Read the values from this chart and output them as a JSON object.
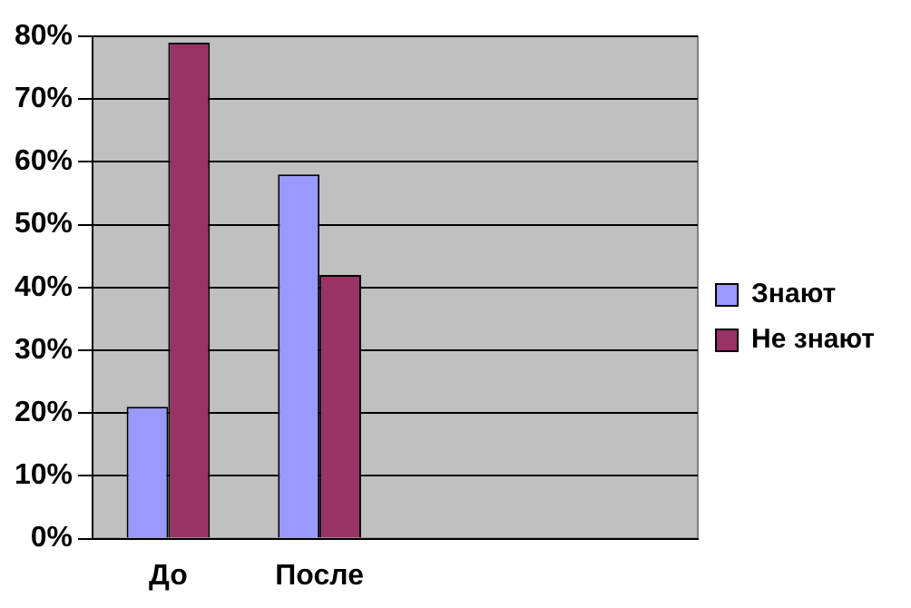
{
  "chart_data": {
    "type": "bar",
    "categories": [
      "До",
      "После",
      null,
      null
    ],
    "series": [
      {
        "name": "Знают",
        "color": "#9999ff",
        "values": [
          21,
          58,
          null,
          null
        ]
      },
      {
        "name": "Не знают",
        "color": "#993366",
        "values": [
          79,
          42,
          null,
          null
        ]
      }
    ],
    "ylim": [
      0,
      80
    ],
    "yticks": [
      {
        "value": 0,
        "label": "0%"
      },
      {
        "value": 10,
        "label": "10%"
      },
      {
        "value": 20,
        "label": "20%"
      },
      {
        "value": 30,
        "label": "30%"
      },
      {
        "value": 40,
        "label": "40%"
      },
      {
        "value": 50,
        "label": "50%"
      },
      {
        "value": 60,
        "label": "60%"
      },
      {
        "value": 70,
        "label": "70%"
      },
      {
        "value": 80,
        "label": "80%"
      }
    ],
    "grid": "y",
    "legend": "right"
  }
}
